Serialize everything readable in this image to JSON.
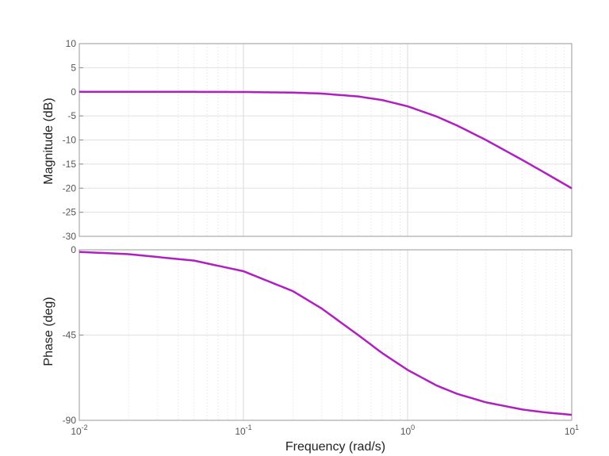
{
  "chart_data": [
    {
      "type": "line",
      "panel": "magnitude",
      "xscale": "log",
      "xlim": [
        0.01,
        10
      ],
      "ylim": [
        -30,
        10
      ],
      "yticks": [
        10,
        5,
        0,
        -5,
        -10,
        -15,
        -20,
        -25,
        -30
      ],
      "ylabel": "Magnitude (dB)",
      "grid": true,
      "series": [
        {
          "color": "#b020c0",
          "x": [
            0.01,
            0.02,
            0.05,
            0.1,
            0.2,
            0.3,
            0.5,
            0.7,
            1,
            1.5,
            2,
            3,
            5,
            7,
            10
          ],
          "y": [
            0,
            -0.002,
            -0.01,
            -0.04,
            -0.17,
            -0.37,
            -0.97,
            -1.71,
            -3.01,
            -5.12,
            -6.99,
            -10.0,
            -14.15,
            -16.98,
            -20.04
          ]
        }
      ]
    },
    {
      "type": "line",
      "panel": "phase",
      "xscale": "log",
      "xlim": [
        0.01,
        10
      ],
      "ylim": [
        -90,
        0
      ],
      "yticks": [
        0,
        -45,
        -90
      ],
      "ylabel": "Phase (deg)",
      "xlabel": "Frequency  (rad/s)",
      "xticks": [
        {
          "value": 0.01,
          "base": "10",
          "exp": "-2"
        },
        {
          "value": 0.1,
          "base": "10",
          "exp": "-1"
        },
        {
          "value": 1,
          "base": "10",
          "exp": "0"
        },
        {
          "value": 10,
          "base": "10",
          "exp": "1"
        }
      ],
      "grid": true,
      "series": [
        {
          "color": "#b020c0",
          "x": [
            0.01,
            0.02,
            0.05,
            0.1,
            0.2,
            0.3,
            0.5,
            0.7,
            1,
            1.5,
            2,
            3,
            5,
            7,
            10
          ],
          "y": [
            -1.1,
            -2.3,
            -5.7,
            -11.3,
            -21.8,
            -31.0,
            -45.0,
            -54.5,
            -63.4,
            -71.6,
            -76.0,
            -80.5,
            -84.3,
            -85.9,
            -87.1
          ]
        }
      ]
    }
  ]
}
